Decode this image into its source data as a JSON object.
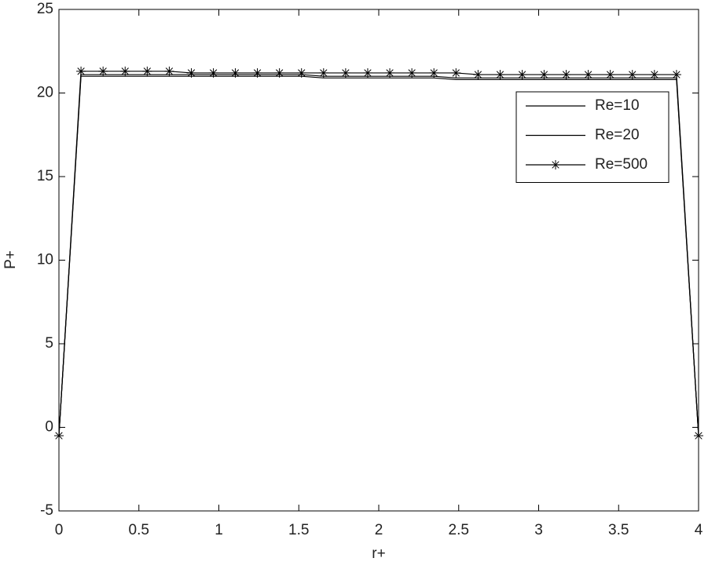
{
  "chart_data": {
    "type": "line",
    "xlabel": "r+",
    "ylabel": "P+",
    "x": [
      0,
      0.138,
      0.276,
      0.414,
      0.552,
      0.69,
      0.828,
      0.966,
      1.103,
      1.241,
      1.379,
      1.517,
      1.655,
      1.793,
      1.931,
      2.069,
      2.207,
      2.345,
      2.483,
      2.621,
      2.759,
      2.897,
      3.034,
      3.172,
      3.31,
      3.448,
      3.586,
      3.724,
      3.862,
      4
    ],
    "series": [
      {
        "name": "Re=10",
        "color": "#000000",
        "marker": "none",
        "values": [
          -0.5,
          21.0,
          21.0,
          21.0,
          21.0,
          21.0,
          21.0,
          21.0,
          21.0,
          21.0,
          21.0,
          21.0,
          20.9,
          20.9,
          20.9,
          20.9,
          20.9,
          20.9,
          20.8,
          20.8,
          20.8,
          20.8,
          20.8,
          20.8,
          20.8,
          20.8,
          20.8,
          20.8,
          20.8,
          -0.5
        ]
      },
      {
        "name": "Re=20",
        "color": "#000000",
        "marker": "none",
        "values": [
          -0.5,
          21.1,
          21.1,
          21.1,
          21.1,
          21.1,
          21.1,
          21.1,
          21.1,
          21.1,
          21.1,
          21.1,
          21.0,
          21.0,
          21.0,
          21.0,
          21.0,
          21.0,
          20.9,
          20.9,
          20.9,
          20.9,
          20.9,
          20.9,
          20.9,
          20.9,
          20.9,
          20.9,
          20.9,
          -0.5
        ]
      },
      {
        "name": "Re=500",
        "color": "#000000",
        "marker": "asterisk",
        "values": [
          -0.5,
          21.3,
          21.3,
          21.3,
          21.3,
          21.3,
          21.2,
          21.2,
          21.2,
          21.2,
          21.2,
          21.2,
          21.2,
          21.2,
          21.2,
          21.2,
          21.2,
          21.2,
          21.2,
          21.1,
          21.1,
          21.1,
          21.1,
          21.1,
          21.1,
          21.1,
          21.1,
          21.1,
          21.1,
          -0.5
        ]
      }
    ],
    "xlim": [
      0,
      4
    ],
    "xticks": [
      0,
      0.5,
      1,
      1.5,
      2,
      2.5,
      3,
      3.5,
      4
    ],
    "ylim": [
      -5,
      25
    ],
    "yticks": [
      -5,
      0,
      5,
      10,
      15,
      20,
      25
    ],
    "grid": false,
    "legend": "upper right"
  }
}
